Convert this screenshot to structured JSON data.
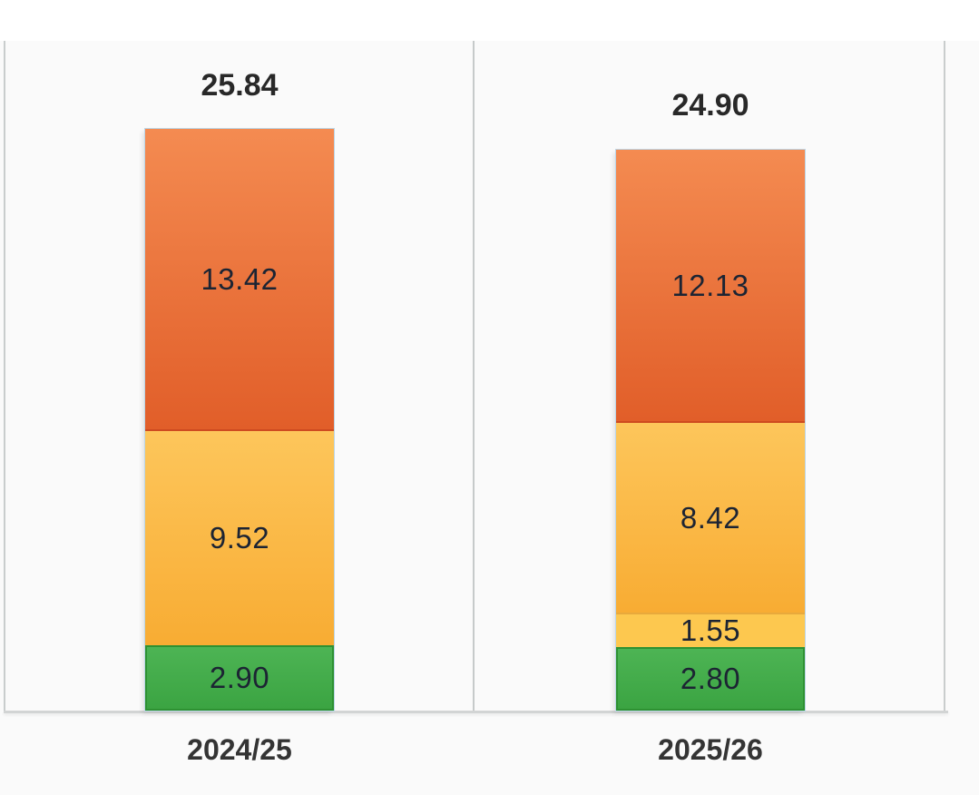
{
  "chart_data": {
    "type": "bar",
    "stacked": true,
    "orientation": "vertical",
    "categories": [
      "2024/25",
      "2025/26"
    ],
    "series": [
      {
        "name": "orange-segment",
        "color": "#E8703A",
        "values": [
          13.42,
          12.13
        ]
      },
      {
        "name": "amber-segment",
        "color": "#FBB844",
        "values": [
          9.52,
          8.42
        ]
      },
      {
        "name": "light-yellow-segment",
        "color": "#FDC84F",
        "values": [
          null,
          1.55
        ]
      },
      {
        "name": "green-segment",
        "color": "#41AB47",
        "values": [
          2.9,
          2.8
        ]
      }
    ],
    "totals": [
      25.84,
      24.9
    ],
    "title": "",
    "xlabel": "",
    "ylabel": "",
    "ylim": [
      0,
      26.8
    ],
    "grid": "none",
    "legend": "none",
    "value_labels": "inside-center",
    "total_labels": "above-bar",
    "y_axis_ticks": "hidden"
  },
  "bars": [
    {
      "category": "2024/25",
      "total": "25.84",
      "segments": [
        {
          "value": "13.42"
        },
        {
          "value": "9.52"
        },
        {
          "value": "2.90"
        }
      ]
    },
    {
      "category": "2025/26",
      "total": "24.90",
      "segments": [
        {
          "value": "12.13"
        },
        {
          "value": "8.42"
        },
        {
          "value": "1.55"
        },
        {
          "value": "2.80"
        }
      ]
    }
  ],
  "colors": {
    "orange_top": "#F48B51",
    "orange_bottom": "#E15E29",
    "orange_border": "#CE4B20",
    "amber_top": "#FDC65B",
    "amber_bottom": "#F8AC33",
    "light_yellow": "#FDC84F",
    "green_top": "#4DB454",
    "green_bottom": "#3BA442",
    "green_border": "#2E9132",
    "bar_rim": "#BDD7E8",
    "panel_background": "#FAFAFA",
    "panel_border": "#C9CDCD",
    "axis_line": "#D2D4D4",
    "segment_label_text": "#1C2433",
    "total_label_text": "#282828",
    "category_label_text": "#343434"
  }
}
